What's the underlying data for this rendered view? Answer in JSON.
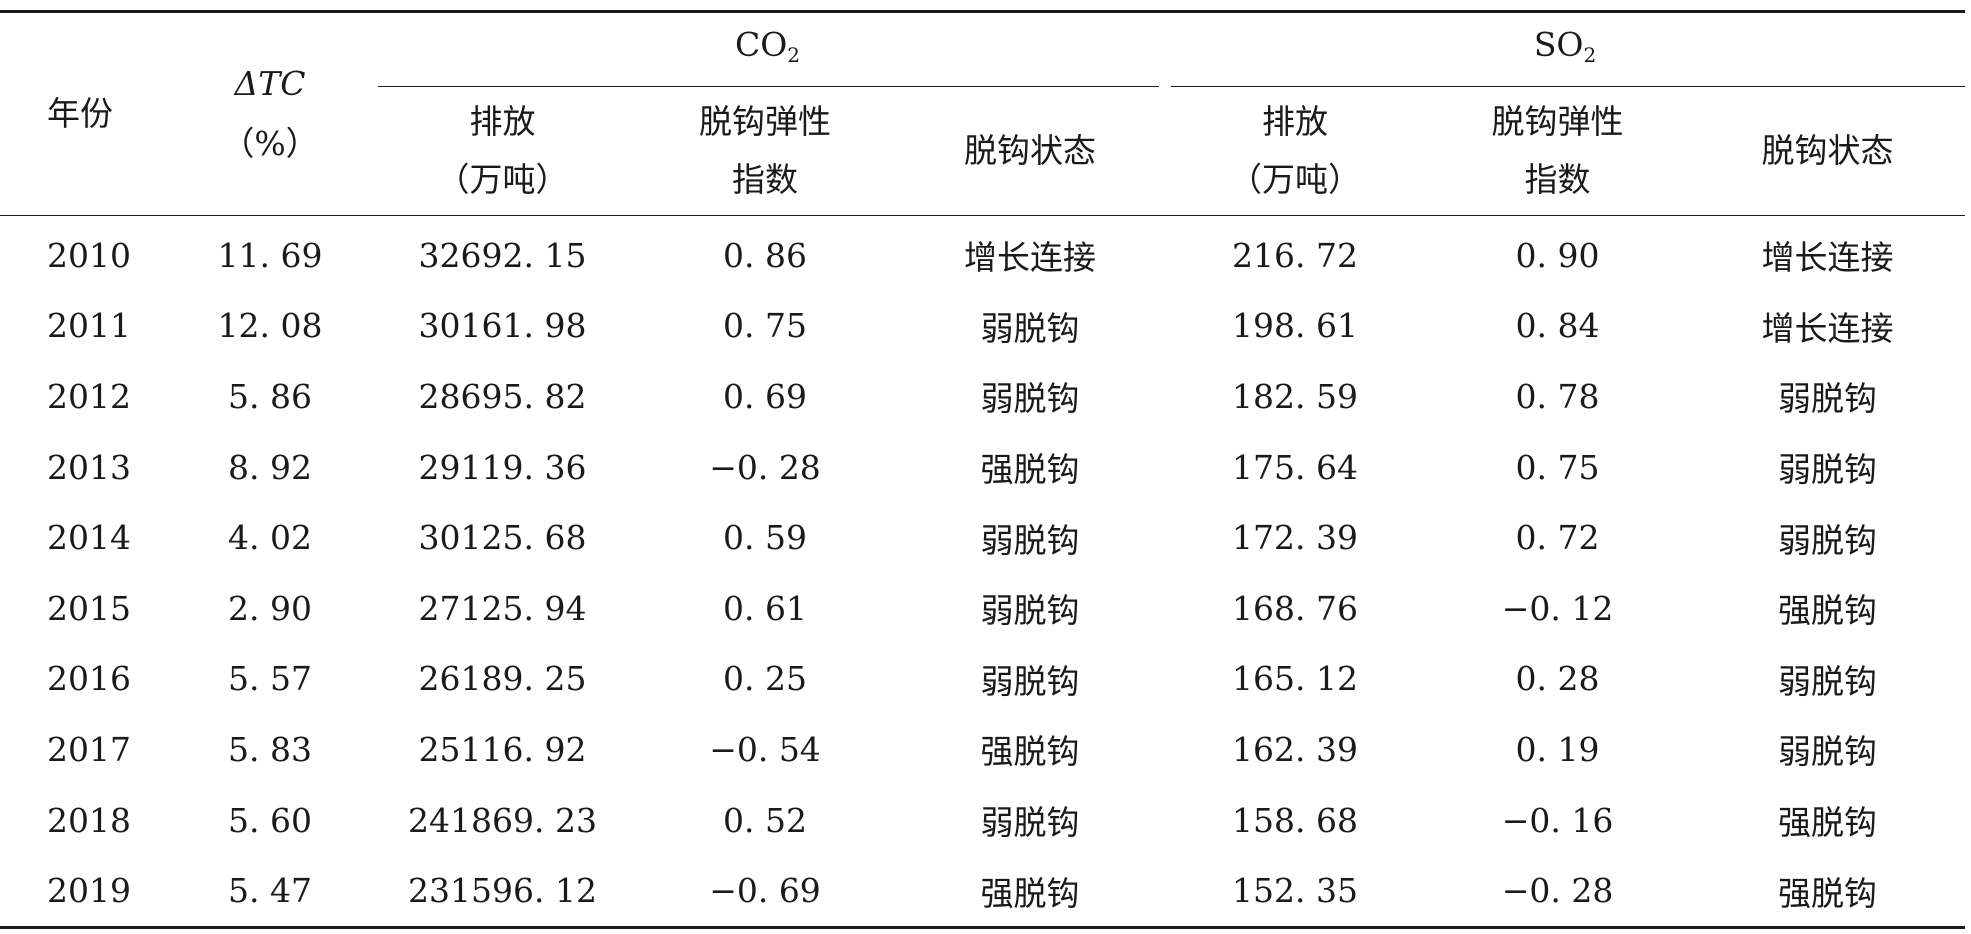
{
  "table": {
    "headers": {
      "year": "年份",
      "dtc_line1": "ΔTC",
      "dtc_line2": "（%）",
      "co2_group": "CO",
      "co2_sub": "2",
      "so2_group": "SO",
      "so2_sub": "2",
      "emission_line1": "排放",
      "emission_line2": "（万吨）",
      "index_line1": "脱钩弹性",
      "index_line2": "指数",
      "state": "脱钩状态"
    },
    "rows": [
      {
        "year": "2010",
        "dtc": "11. 69",
        "co2_emission": "32692. 15",
        "co2_index": "0. 86",
        "co2_state": "增长连接",
        "so2_emission": "216. 72",
        "so2_index": "0. 90",
        "so2_state": "增长连接"
      },
      {
        "year": "2011",
        "dtc": "12. 08",
        "co2_emission": "30161. 98",
        "co2_index": "0. 75",
        "co2_state": "弱脱钩",
        "so2_emission": "198. 61",
        "so2_index": "0. 84",
        "so2_state": "增长连接"
      },
      {
        "year": "2012",
        "dtc": "5. 86",
        "co2_emission": "28695. 82",
        "co2_index": "0. 69",
        "co2_state": "弱脱钩",
        "so2_emission": "182. 59",
        "so2_index": "0. 78",
        "so2_state": "弱脱钩"
      },
      {
        "year": "2013",
        "dtc": "8. 92",
        "co2_emission": "29119. 36",
        "co2_index": "−0. 28",
        "co2_state": "强脱钩",
        "so2_emission": "175. 64",
        "so2_index": "0. 75",
        "so2_state": "弱脱钩"
      },
      {
        "year": "2014",
        "dtc": "4. 02",
        "co2_emission": "30125. 68",
        "co2_index": "0. 59",
        "co2_state": "弱脱钩",
        "so2_emission": "172. 39",
        "so2_index": "0. 72",
        "so2_state": "弱脱钩"
      },
      {
        "year": "2015",
        "dtc": "2. 90",
        "co2_emission": "27125. 94",
        "co2_index": "0. 61",
        "co2_state": "弱脱钩",
        "so2_emission": "168. 76",
        "so2_index": "−0. 12",
        "so2_state": "强脱钩"
      },
      {
        "year": "2016",
        "dtc": "5. 57",
        "co2_emission": "26189. 25",
        "co2_index": "0. 25",
        "co2_state": "弱脱钩",
        "so2_emission": "165. 12",
        "so2_index": "0. 28",
        "so2_state": "弱脱钩"
      },
      {
        "year": "2017",
        "dtc": "5. 83",
        "co2_emission": "25116. 92",
        "co2_index": "−0. 54",
        "co2_state": "强脱钩",
        "so2_emission": "162. 39",
        "so2_index": "0. 19",
        "so2_state": "弱脱钩"
      },
      {
        "year": "2018",
        "dtc": "5. 60",
        "co2_emission": "241869. 23",
        "co2_index": "0. 52",
        "co2_state": "弱脱钩",
        "so2_emission": "158. 68",
        "so2_index": "−0. 16",
        "so2_state": "强脱钩"
      },
      {
        "year": "2019",
        "dtc": "5. 47",
        "co2_emission": "231596. 12",
        "co2_index": "−0. 69",
        "co2_state": "强脱钩",
        "so2_emission": "152. 35",
        "so2_index": "−0. 28",
        "so2_state": "强脱钩"
      }
    ]
  }
}
